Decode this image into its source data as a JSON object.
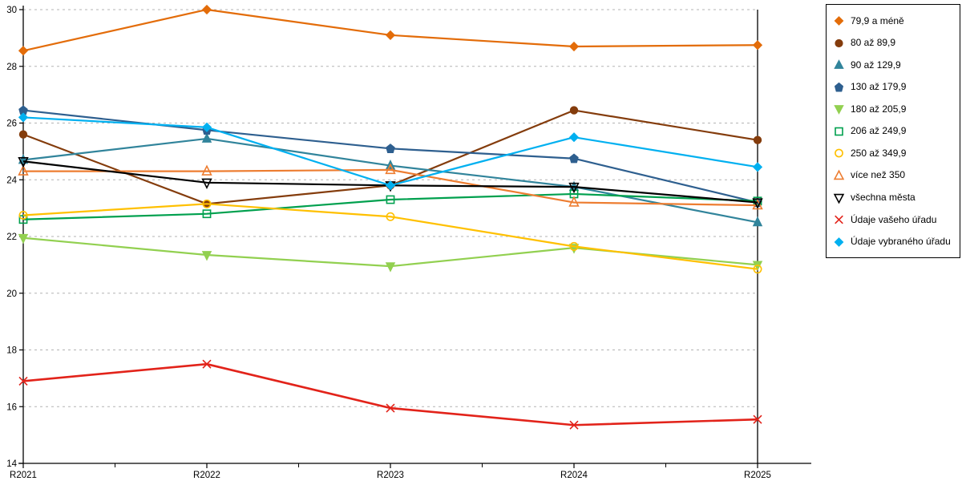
{
  "chart_data": {
    "type": "line",
    "title": "",
    "xlabel": "",
    "ylabel": "",
    "x_categories": [
      "R2021",
      "R2022",
      "R2023",
      "R2024",
      "R2025"
    ],
    "y_axis": {
      "min": 14,
      "max": 30,
      "tick_step": 2
    },
    "grid": "horizontal-dashed",
    "legend_position": "right-outside",
    "series": [
      {
        "name": "79,9 a méně",
        "color": "#E36C09",
        "marker": "diamond",
        "fill": "solid",
        "values": [
          28.55,
          30.0,
          29.1,
          28.7,
          28.75
        ]
      },
      {
        "name": "80 až 89,9",
        "color": "#843C0C",
        "marker": "circle",
        "fill": "solid",
        "values": [
          25.6,
          23.15,
          23.8,
          26.45,
          25.4
        ]
      },
      {
        "name": "90 až 129,9",
        "color": "#31849B",
        "marker": "triangle-up",
        "fill": "solid",
        "values": [
          24.7,
          25.45,
          24.5,
          23.75,
          22.5
        ]
      },
      {
        "name": "130 až 179,9",
        "color": "#2E5F8F",
        "marker": "pentagon",
        "fill": "solid",
        "values": [
          26.45,
          25.75,
          25.1,
          24.75,
          23.2
        ]
      },
      {
        "name": "180 až 205,9",
        "color": "#92D050",
        "marker": "triangle-down",
        "fill": "solid",
        "values": [
          21.95,
          21.35,
          20.95,
          21.6,
          21.0
        ]
      },
      {
        "name": "206 až 249,9",
        "color": "#00A04E",
        "marker": "square",
        "fill": "open",
        "values": [
          22.6,
          22.8,
          23.3,
          23.5,
          23.25
        ]
      },
      {
        "name": "250 až 349,9",
        "color": "#FFC000",
        "marker": "circle",
        "fill": "open",
        "values": [
          22.75,
          23.15,
          22.7,
          21.65,
          20.85
        ]
      },
      {
        "name": "více než 350",
        "color": "#ED7D31",
        "marker": "triangle-up",
        "fill": "open",
        "values": [
          24.3,
          24.3,
          24.35,
          23.2,
          23.1
        ]
      },
      {
        "name": "všechna města",
        "color": "#000000",
        "marker": "triangle-down",
        "fill": "open",
        "values": [
          24.65,
          23.9,
          23.8,
          23.75,
          23.2
        ]
      },
      {
        "name": "Údaje vašeho úřadu",
        "color": "#E2231A",
        "marker": "x",
        "fill": "open",
        "values": [
          16.9,
          17.5,
          15.95,
          15.35,
          15.55
        ]
      },
      {
        "name": "Údaje vybraného úřadu",
        "color": "#00B0F0",
        "marker": "diamond",
        "fill": "solid",
        "values": [
          26.2,
          25.85,
          23.8,
          25.5,
          24.45
        ]
      }
    ]
  }
}
